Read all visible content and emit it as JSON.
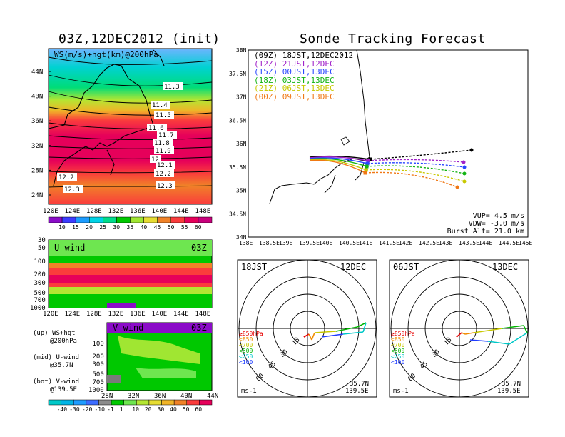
{
  "main_map": {
    "title": "03Z,12DEC2012 (init)",
    "label": "WS(m/s)+hgt(km)@200hPa",
    "lat_ticks": [
      "44N",
      "40N",
      "36N",
      "32N",
      "28N",
      "24N"
    ],
    "lon_ticks": [
      "120E",
      "124E",
      "128E",
      "132E",
      "136E",
      "140E",
      "144E",
      "148E"
    ],
    "hgt_labels": [
      "11.3",
      "11.4",
      "11.5",
      "11.6",
      "11.7",
      "11.8",
      "11.9",
      "12",
      "12.1",
      "12.2",
      "12.3",
      "12.2",
      "12.3"
    ],
    "colorbar": [
      "10",
      "15",
      "20",
      "25",
      "30",
      "35",
      "40",
      "45",
      "50",
      "55",
      "60"
    ],
    "colorbar_colors": [
      "#8b0cc8",
      "#3c3cff",
      "#1c9cff",
      "#00d2e6",
      "#00dc8c",
      "#00c800",
      "#a0e632",
      "#e6dc32",
      "#f08228",
      "#fa3c3c",
      "#e6005a",
      "#c8007c"
    ]
  },
  "u_panel": {
    "label": "U-wind",
    "time": "03Z",
    "p_ticks": [
      "30",
      "50",
      "100",
      "200",
      "300",
      "500",
      "700",
      "1000"
    ],
    "lon_ticks": [
      "120E",
      "124E",
      "128E",
      "132E",
      "136E",
      "140E",
      "144E",
      "148E"
    ]
  },
  "v_panel": {
    "label": "V-wind",
    "time": "03Z",
    "p_ticks": [
      "100",
      "200",
      "300",
      "500",
      "700",
      "1000"
    ],
    "lat_ticks": [
      "28N",
      "32N",
      "36N",
      "40N",
      "44N"
    ],
    "colorbar": [
      "-40",
      "-30",
      "-20",
      "-10",
      "-1",
      "1",
      "10",
      "20",
      "30",
      "40",
      "50",
      "60"
    ]
  },
  "legend_notes": [
    {
      "a": "(up) WS+hgt",
      "b": "@200hPa"
    },
    {
      "a": "(mid) U-wind",
      "b": "@35.7N"
    },
    {
      "a": "(bot) V-wind",
      "b": "@139.5E"
    }
  ],
  "tracking": {
    "title": "Sonde Tracking Forecast",
    "lat_ticks": [
      "38N",
      "37.5N",
      "37N",
      "36.5N",
      "36N",
      "35.5N",
      "35N",
      "34.5N",
      "34N"
    ],
    "lon_ticks": [
      "138E",
      "138.5E",
      "139E",
      "139.5E",
      "140E",
      "140.5E",
      "141E",
      "141.5E",
      "142E",
      "142.5E",
      "143E",
      "143.5E",
      "144E",
      "144.5E",
      "145E"
    ],
    "launches": [
      {
        "utc": "(09Z)",
        "jst": "18JST,12DEC2012",
        "color": "#000000"
      },
      {
        "utc": "(12Z)",
        "jst": "21JST,12DEC",
        "color": "#a020c8"
      },
      {
        "utc": "(15Z)",
        "jst": "00JST,13DEC",
        "color": "#2846ff"
      },
      {
        "utc": "(18Z)",
        "jst": "03JST,13DEC",
        "color": "#14b414"
      },
      {
        "utc": "(21Z)",
        "jst": "06JST,13DEC",
        "color": "#c8c800"
      },
      {
        "utc": "(00Z)",
        "jst": "09JST,13DEC",
        "color": "#f07814"
      }
    ],
    "vup": "VUP= 4.5 m/s",
    "vdw": "VDW= -3.0 m/s",
    "burst": "Burst Alt= 21.0 km"
  },
  "hodographs": [
    {
      "time": "18JST",
      "date": "12DEC",
      "lat": "35.7N",
      "lon": "139.5E",
      "units": "ms-1"
    },
    {
      "time": "06JST",
      "date": "13DEC",
      "lat": "35.7N",
      "lon": "139.5E",
      "units": "ms-1"
    }
  ],
  "hodo_rings": [
    "15",
    "30",
    "45",
    "60"
  ],
  "hodo_levels": [
    {
      "label": "≥850hPa",
      "color": "#e60000"
    },
    {
      "label": "<850",
      "color": "#f08c00"
    },
    {
      "label": "<700",
      "color": "#c8c800"
    },
    {
      "label": "<500",
      "color": "#00b400"
    },
    {
      "label": "<250",
      "color": "#00c8c8"
    },
    {
      "label": "<100",
      "color": "#1e3cff"
    }
  ]
}
